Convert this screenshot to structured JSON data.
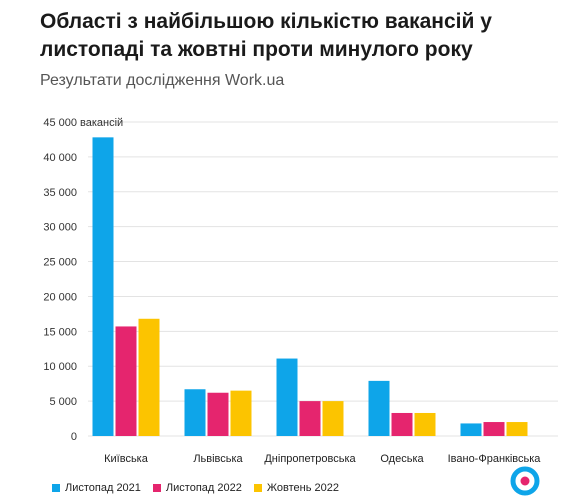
{
  "header": {
    "title": "Області з найбільшою кількістю вакансій у листопаді та жовтні проти минулого року",
    "subtitle": "Результати дослідження Work.ua"
  },
  "chart_data": {
    "type": "bar",
    "categories": [
      "Київська",
      "Львівська",
      "Дніпропетровська",
      "Одеська",
      "Івано-Франківська"
    ],
    "series": [
      {
        "name": "Листопад 2021",
        "color": "#0ea5e9",
        "values": [
          42800,
          6700,
          11100,
          7900,
          1800
        ]
      },
      {
        "name": "Листопад 2022",
        "color": "#e5256e",
        "values": [
          15700,
          6200,
          5000,
          3300,
          2000
        ]
      },
      {
        "name": "Жовтень 2022",
        "color": "#fcc400",
        "values": [
          16800,
          6500,
          5000,
          3300,
          2000
        ]
      }
    ],
    "ylim": [
      0,
      45000
    ],
    "yticks": [
      0,
      5000,
      10000,
      15000,
      20000,
      25000,
      30000,
      35000,
      40000,
      45000
    ],
    "ytick_labels": [
      "0",
      "5 000",
      "10 000",
      "15 000",
      "20 000",
      "25 000",
      "30 000",
      "35 000",
      "40 000",
      "45 000"
    ],
    "yunit": "вакансій",
    "grid": true,
    "legend_position": "bottom-left"
  },
  "logo": {
    "name": "work-ua-logo-icon",
    "ring_color": "#0ea5e9",
    "dot_color": "#e5256e"
  }
}
